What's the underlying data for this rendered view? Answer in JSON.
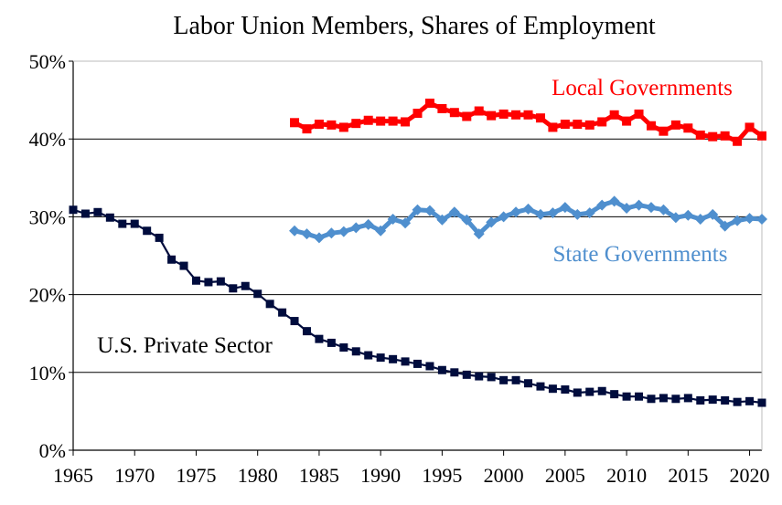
{
  "chart_data": {
    "type": "line",
    "title": "Labor Union Members, Shares of Employment",
    "xlabel": "",
    "ylabel": "",
    "xlim": [
      1965,
      2021
    ],
    "ylim": [
      0,
      50
    ],
    "y_ticks": [
      0,
      10,
      20,
      30,
      40,
      50
    ],
    "y_tick_labels": [
      "0%",
      "10%",
      "20%",
      "30%",
      "40%",
      "50%"
    ],
    "x_ticks": [
      1965,
      1970,
      1975,
      1980,
      1985,
      1990,
      1995,
      2000,
      2005,
      2010,
      2015,
      2020
    ],
    "x_tick_labels": [
      "1965",
      "1970",
      "1975",
      "1980",
      "1985",
      "1990",
      "1995",
      "2000",
      "2005",
      "2010",
      "2015",
      "2020"
    ],
    "grid": "horizontal",
    "legend": "none",
    "series": [
      {
        "name": "Local Governments",
        "color": "#ff0000",
        "marker": "square",
        "x": [
          1983,
          1984,
          1985,
          1986,
          1987,
          1988,
          1989,
          1990,
          1991,
          1992,
          1993,
          1994,
          1995,
          1996,
          1997,
          1998,
          1999,
          2000,
          2001,
          2002,
          2003,
          2004,
          2005,
          2006,
          2007,
          2008,
          2009,
          2010,
          2011,
          2012,
          2013,
          2014,
          2015,
          2016,
          2017,
          2018,
          2019,
          2020,
          2021
        ],
        "values": [
          42.1,
          41.3,
          41.9,
          41.8,
          41.5,
          42.0,
          42.4,
          42.3,
          42.3,
          42.2,
          43.3,
          44.6,
          43.9,
          43.4,
          42.9,
          43.6,
          43.0,
          43.2,
          43.1,
          43.1,
          42.7,
          41.5,
          41.9,
          41.9,
          41.8,
          42.2,
          43.1,
          42.3,
          43.2,
          41.7,
          41.0,
          41.8,
          41.4,
          40.5,
          40.3,
          40.4,
          39.7,
          41.5,
          40.4
        ]
      },
      {
        "name": "State Governments",
        "color": "#4f8fce",
        "marker": "diamond",
        "x": [
          1983,
          1984,
          1985,
          1986,
          1987,
          1988,
          1989,
          1990,
          1991,
          1992,
          1993,
          1994,
          1995,
          1996,
          1997,
          1998,
          1999,
          2000,
          2001,
          2002,
          2003,
          2004,
          2005,
          2006,
          2007,
          2008,
          2009,
          2010,
          2011,
          2012,
          2013,
          2014,
          2015,
          2016,
          2017,
          2018,
          2019,
          2020,
          2021
        ],
        "values": [
          28.2,
          27.8,
          27.3,
          27.9,
          28.1,
          28.6,
          29.0,
          28.2,
          29.7,
          29.2,
          30.9,
          30.8,
          29.6,
          30.6,
          29.6,
          27.8,
          29.3,
          30.0,
          30.6,
          31.0,
          30.3,
          30.5,
          31.2,
          30.3,
          30.5,
          31.5,
          32.0,
          31.1,
          31.5,
          31.2,
          30.9,
          29.9,
          30.2,
          29.7,
          30.3,
          28.8,
          29.5,
          29.8,
          29.7
        ]
      },
      {
        "name": "U.S. Private Sector",
        "color": "#000c3d",
        "marker": "square",
        "x": [
          1965,
          1966,
          1967,
          1968,
          1969,
          1970,
          1971,
          1972,
          1973,
          1974,
          1975,
          1976,
          1977,
          1978,
          1979,
          1980,
          1981,
          1982,
          1983,
          1984,
          1985,
          1986,
          1987,
          1988,
          1989,
          1990,
          1991,
          1992,
          1993,
          1994,
          1995,
          1996,
          1997,
          1998,
          1999,
          2000,
          2001,
          2002,
          2003,
          2004,
          2005,
          2006,
          2007,
          2008,
          2009,
          2010,
          2011,
          2012,
          2013,
          2014,
          2015,
          2016,
          2017,
          2018,
          2019,
          2020,
          2021
        ],
        "values": [
          30.9,
          30.4,
          30.6,
          29.9,
          29.1,
          29.1,
          28.2,
          27.3,
          24.5,
          23.7,
          21.8,
          21.6,
          21.7,
          20.8,
          21.1,
          20.1,
          18.8,
          17.7,
          16.6,
          15.3,
          14.3,
          13.8,
          13.2,
          12.7,
          12.2,
          11.9,
          11.7,
          11.4,
          11.1,
          10.8,
          10.3,
          10.0,
          9.7,
          9.5,
          9.4,
          9.0,
          9.0,
          8.6,
          8.2,
          7.9,
          7.8,
          7.4,
          7.5,
          7.6,
          7.2,
          6.9,
          6.9,
          6.6,
          6.7,
          6.6,
          6.7,
          6.4,
          6.5,
          6.4,
          6.2,
          6.3,
          6.1
        ]
      }
    ],
    "annotations": [
      {
        "text": "Local Governments",
        "series": "Local Governments",
        "color": "#ff0000"
      },
      {
        "text": "State Governments",
        "series": "State Governments",
        "color": "#4f8fce"
      },
      {
        "text": "U.S. Private Sector",
        "series": "U.S. Private Sector",
        "color": "#000000"
      }
    ]
  }
}
